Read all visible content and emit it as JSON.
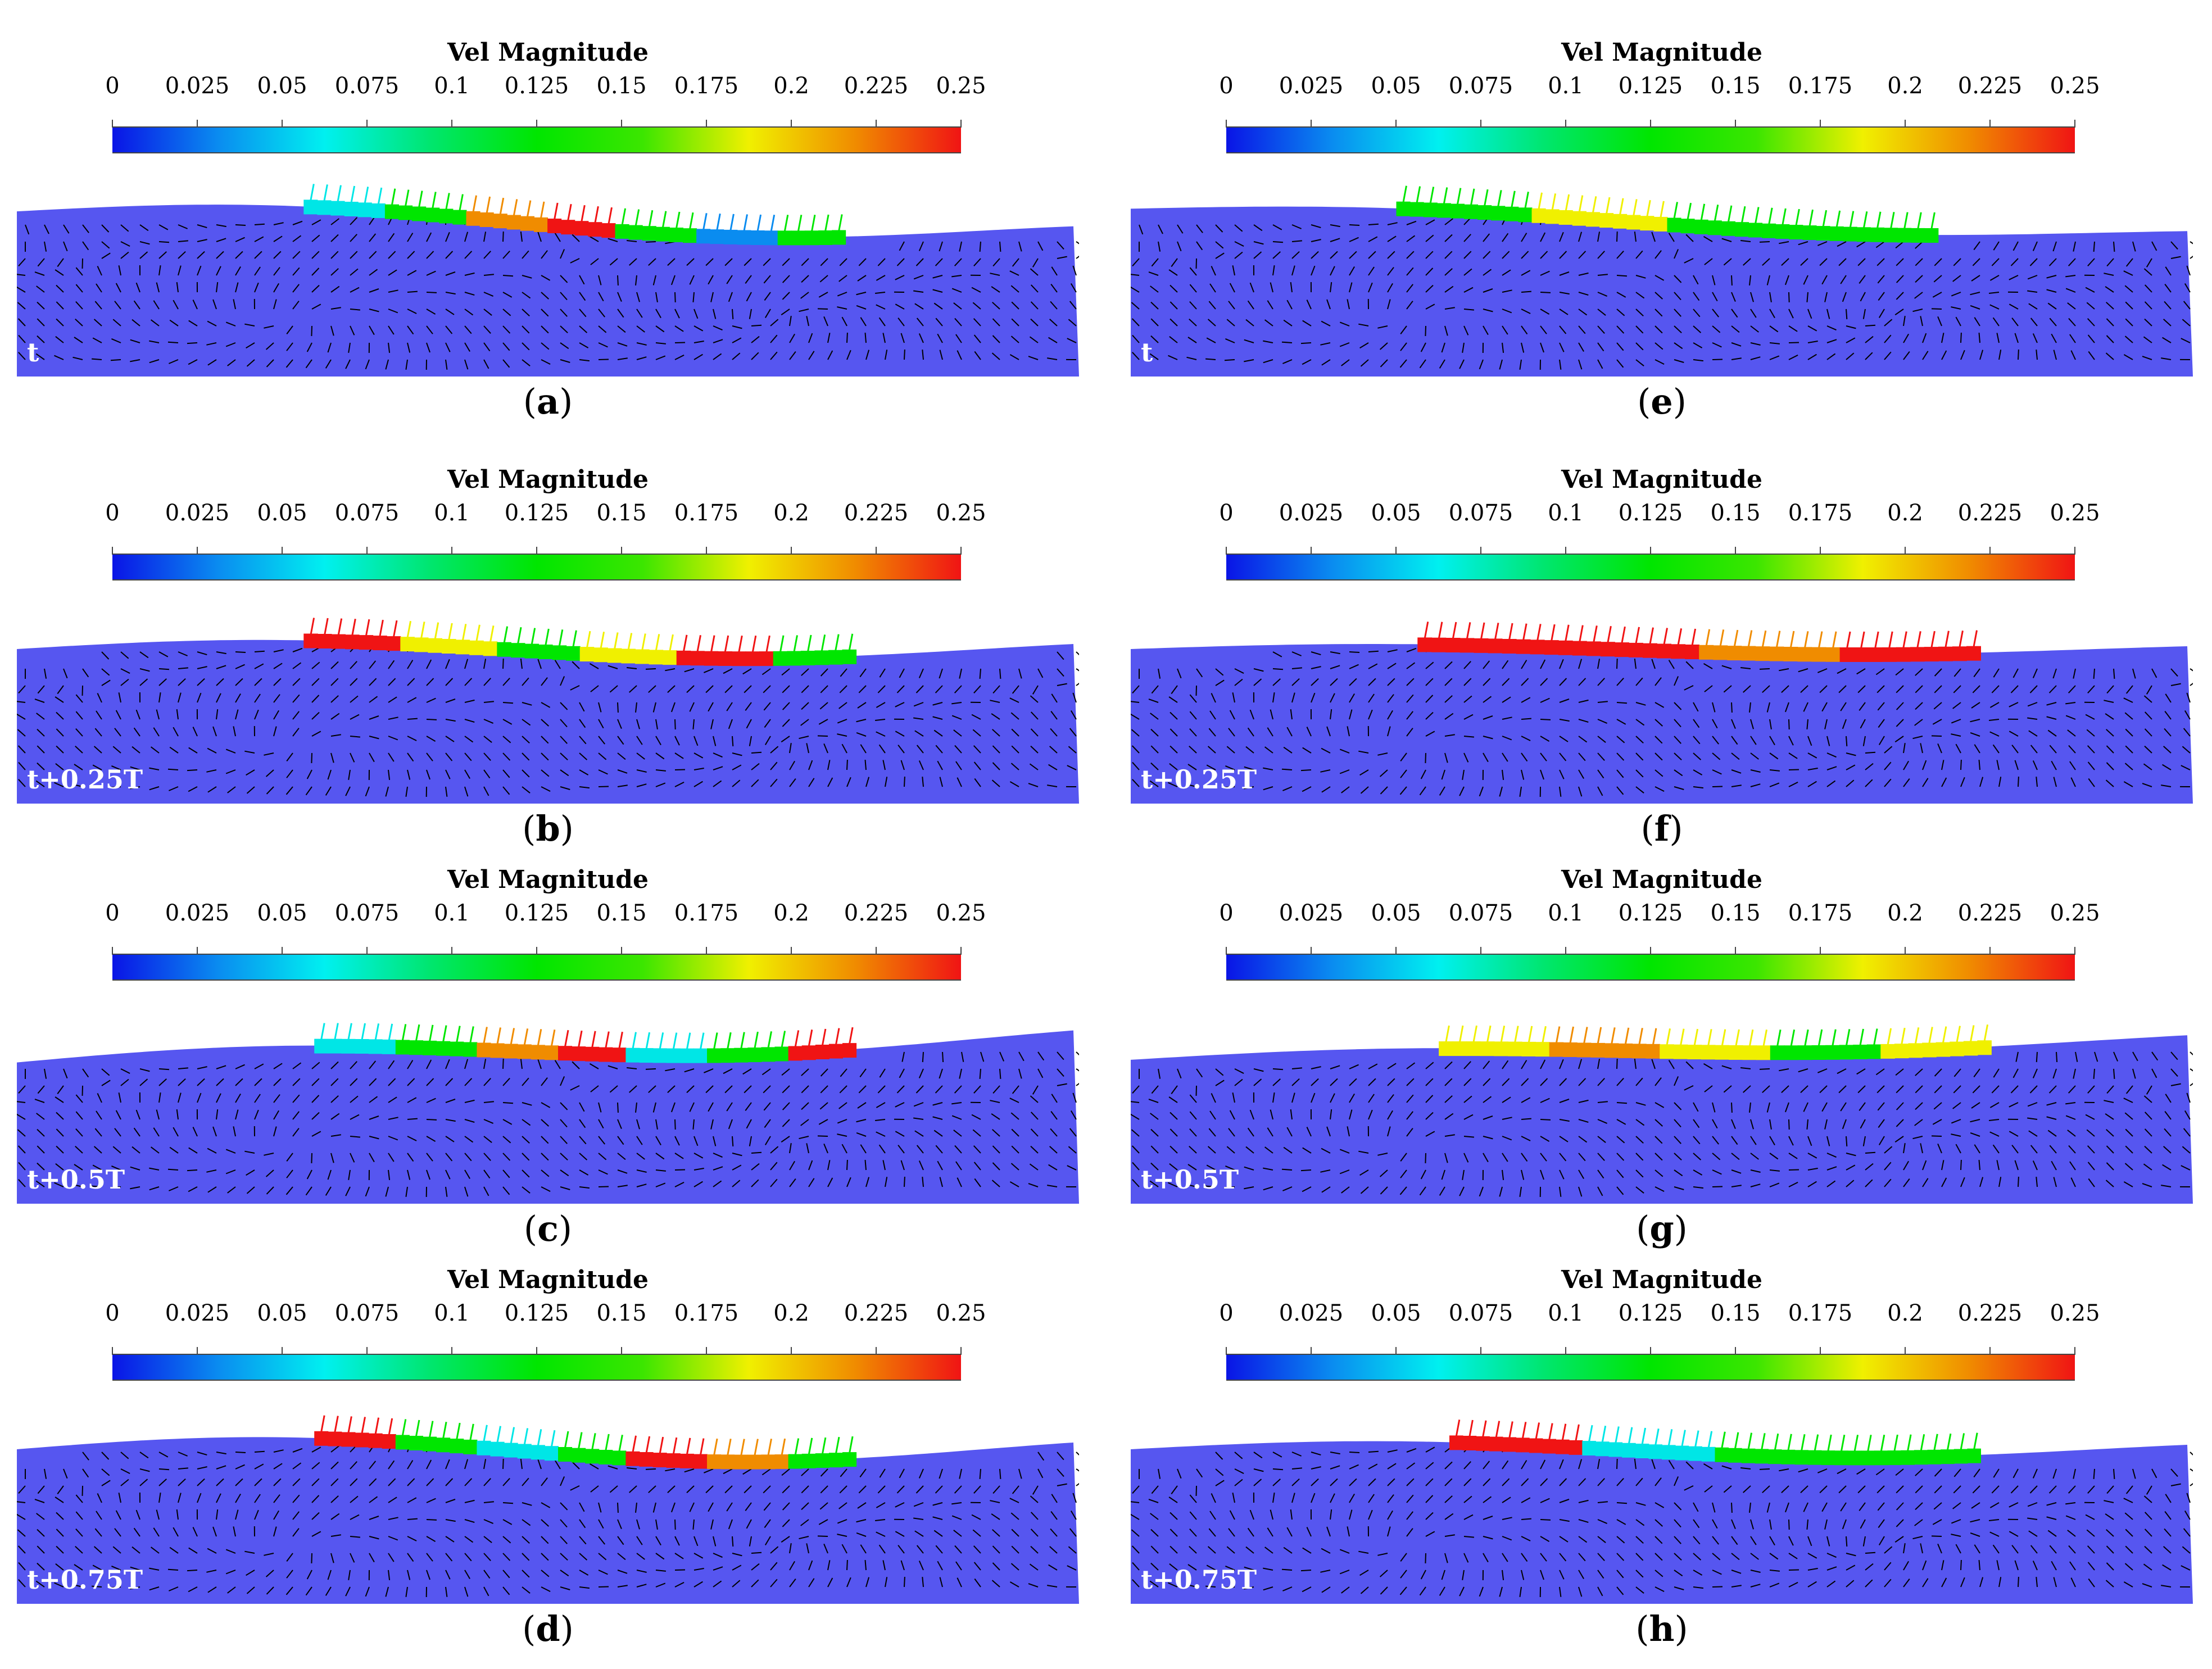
{
  "colorbar": {
    "title": "Vel Magnitude",
    "ticks": [
      "0",
      "0.025",
      "0.05",
      "0.075",
      "0.1",
      "0.125",
      "0.15",
      "0.175",
      "0.2",
      "0.225",
      "0.25"
    ],
    "range": [
      0,
      0.25
    ],
    "colors": [
      "#0a14e6",
      "#0a8cf0",
      "#00f0f0",
      "#00e66e",
      "#00e600",
      "#3ce600",
      "#f0f000",
      "#f08c00",
      "#f01414"
    ]
  },
  "colors": {
    "water": "#5656f0",
    "vector": "#000000",
    "label": "#ffffff"
  },
  "panels": [
    {
      "letter": "a",
      "time": "t"
    },
    {
      "letter": "b",
      "time": "t+0.25T"
    },
    {
      "letter": "c",
      "time": "t+0.5T"
    },
    {
      "letter": "d",
      "time": "t+0.75T"
    },
    {
      "letter": "e",
      "time": "t"
    },
    {
      "letter": "f",
      "time": "t+0.25T"
    },
    {
      "letter": "g",
      "time": "t+0.5T"
    },
    {
      "letter": "h",
      "time": "t+0.75T"
    }
  ]
}
